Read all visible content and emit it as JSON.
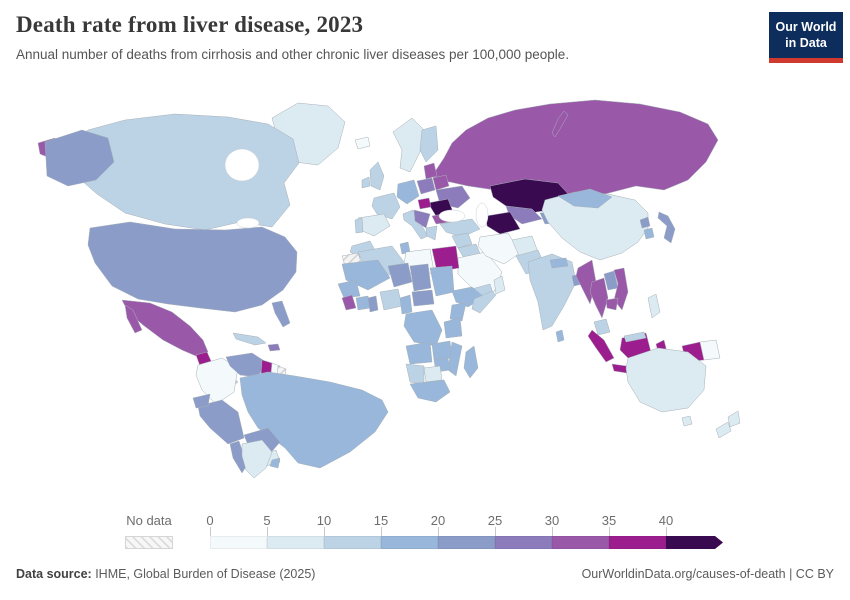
{
  "header": {
    "title": "Death rate from liver disease, 2023",
    "subtitle": "Annual number of deaths from cirrhosis and other chronic liver diseases per 100,000 people.",
    "logo": {
      "line1": "Our World",
      "line2": "in Data",
      "bg": "#0d2d5c",
      "accent": "#d0392e"
    }
  },
  "footer": {
    "source_label": "Data source:",
    "source_value": " IHME, Global Burden of Disease (2025)",
    "right_text": "OurWorldinData.org/causes-of-death | CC BY"
  },
  "chart_data": {
    "type": "choropleth",
    "title": "Death rate from liver disease, 2023",
    "unit": "deaths from cirrhosis and other chronic liver diseases per 100,000 people",
    "year": "2023",
    "legend": {
      "no_data_label": "No data",
      "tick_labels": [
        "0",
        "5",
        "10",
        "15",
        "20",
        "25",
        "30",
        "35",
        "40"
      ],
      "arrow_end": true,
      "bins": [
        {
          "range": "0-5",
          "color": "#f4fafb"
        },
        {
          "range": "5-10",
          "color": "#dceaf1"
        },
        {
          "range": "10-15",
          "color": "#bcd3e6"
        },
        {
          "range": "15-20",
          "color": "#98b7da"
        },
        {
          "range": "20-25",
          "color": "#8b9cc9"
        },
        {
          "range": "25-30",
          "color": "#8c7cbc"
        },
        {
          "range": "30-35",
          "color": "#9a58a8"
        },
        {
          "range": "35-40",
          "color": "#9c1e8e"
        },
        {
          "range": "40+",
          "color": "#3a0a50"
        }
      ]
    },
    "regions": {
      "greenland": {
        "bin": "5-10"
      },
      "canada": {
        "bin": "10-15"
      },
      "usa": {
        "bin": "20-25"
      },
      "mexico": {
        "bin": "30-35"
      },
      "guatemala": {
        "bin": "35-40"
      },
      "central_america": {
        "bin": "10-15"
      },
      "cuba": {
        "bin": "10-15"
      },
      "hispaniola": {
        "bin": "25-30"
      },
      "colombia": {
        "bin": "0-5"
      },
      "venezuela": {
        "bin": "20-25"
      },
      "guyana": {
        "bin": "35-40"
      },
      "suriname": {
        "bin": "0-5"
      },
      "french_guiana": {
        "bin": "no-data"
      },
      "brazil": {
        "bin": "15-20"
      },
      "peru": {
        "bin": "20-25"
      },
      "ecuador": {
        "bin": "20-25"
      },
      "bolivia": {
        "bin": "20-25"
      },
      "paraguay": {
        "bin": "5-10"
      },
      "chile": {
        "bin": "20-25"
      },
      "argentina": {
        "bin": "5-10"
      },
      "uruguay": {
        "bin": "15-20"
      },
      "iceland": {
        "bin": "0-5"
      },
      "norway_sweden": {
        "bin": "5-10"
      },
      "finland": {
        "bin": "10-15"
      },
      "uk": {
        "bin": "10-15"
      },
      "ireland": {
        "bin": "10-15"
      },
      "france": {
        "bin": "10-15"
      },
      "spain": {
        "bin": "5-10"
      },
      "portugal": {
        "bin": "10-15"
      },
      "germany_central": {
        "bin": "15-20"
      },
      "italy": {
        "bin": "10-15"
      },
      "poland": {
        "bin": "25-30"
      },
      "baltics": {
        "bin": "30-35"
      },
      "belarus": {
        "bin": "30-35"
      },
      "ukraine": {
        "bin": "25-30"
      },
      "romania_moldova": {
        "bin": "40+"
      },
      "hungary": {
        "bin": "35-40"
      },
      "balkans": {
        "bin": "25-30"
      },
      "bulgaria": {
        "bin": "30-35"
      },
      "greece": {
        "bin": "10-15"
      },
      "turkey": {
        "bin": "10-15"
      },
      "russia": {
        "bin": "30-35"
      },
      "kazakhstan": {
        "bin": "40+"
      },
      "turkmenistan": {
        "bin": "40+"
      },
      "uzbekistan": {
        "bin": "25-30"
      },
      "kyrgyz_tajik": {
        "bin": "20-25"
      },
      "syria_levant": {
        "bin": "10-15"
      },
      "iraq": {
        "bin": "10-15"
      },
      "saudi_arabia": {
        "bin": "0-5"
      },
      "yemen": {
        "bin": "10-15"
      },
      "oman": {
        "bin": "5-10"
      },
      "iran": {
        "bin": "0-5"
      },
      "afghanistan": {
        "bin": "5-10"
      },
      "pakistan": {
        "bin": "10-15"
      },
      "india": {
        "bin": "10-15"
      },
      "nepal": {
        "bin": "15-20"
      },
      "bangladesh": {
        "bin": "20-25"
      },
      "sri_lanka": {
        "bin": "15-20"
      },
      "china": {
        "bin": "5-10"
      },
      "mongolia": {
        "bin": "15-20"
      },
      "north_korea": {
        "bin": "20-25"
      },
      "south_korea": {
        "bin": "15-20"
      },
      "japan": {
        "bin": "20-25"
      },
      "myanmar": {
        "bin": "30-35"
      },
      "thailand": {
        "bin": "30-35"
      },
      "laos": {
        "bin": "20-25"
      },
      "vietnam": {
        "bin": "30-35"
      },
      "cambodia": {
        "bin": "30-35"
      },
      "malaysia": {
        "bin": "10-15"
      },
      "indonesia": {
        "bin": "35-40"
      },
      "papua_new_guinea": {
        "bin": "0-5"
      },
      "philippines": {
        "bin": "5-10"
      },
      "morocco": {
        "bin": "10-15"
      },
      "algeria": {
        "bin": "10-15"
      },
      "tunisia": {
        "bin": "15-20"
      },
      "libya": {
        "bin": "0-5"
      },
      "egypt": {
        "bin": "35-40"
      },
      "western_sahara": {
        "bin": "no-data"
      },
      "mauritania_mali": {
        "bin": "15-20"
      },
      "niger": {
        "bin": "20-25"
      },
      "chad": {
        "bin": "20-25"
      },
      "sudan": {
        "bin": "15-20"
      },
      "senegal_guinea": {
        "bin": "15-20"
      },
      "sierra_leone_liberia": {
        "bin": "30-35"
      },
      "ivory_coast": {
        "bin": "15-20"
      },
      "ghana": {
        "bin": "20-25"
      },
      "nigeria": {
        "bin": "10-15"
      },
      "cameroon": {
        "bin": "15-20"
      },
      "car": {
        "bin": "20-25"
      },
      "ethiopia": {
        "bin": "15-20"
      },
      "somalia": {
        "bin": "10-15"
      },
      "kenya": {
        "bin": "15-20"
      },
      "drc": {
        "bin": "15-20"
      },
      "tanzania": {
        "bin": "15-20"
      },
      "angola": {
        "bin": "15-20"
      },
      "zambia": {
        "bin": "15-20"
      },
      "zimbabwe": {
        "bin": "15-20"
      },
      "mozambique": {
        "bin": "15-20"
      },
      "botswana": {
        "bin": "5-10"
      },
      "namibia": {
        "bin": "10-15"
      },
      "south_africa": {
        "bin": "15-20"
      },
      "madagascar": {
        "bin": "15-20"
      },
      "australia": {
        "bin": "5-10"
      },
      "new_zealand": {
        "bin": "5-10"
      }
    }
  }
}
